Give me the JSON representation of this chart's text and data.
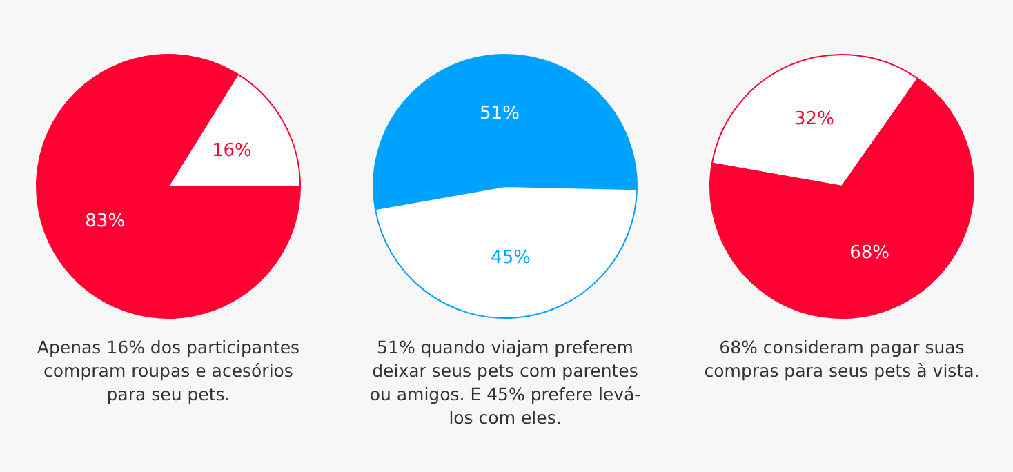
{
  "chart_data": [
    {
      "type": "pie",
      "categories": [
        null,
        null
      ],
      "values": [
        83,
        16
      ],
      "colors": [
        "#ff0033",
        "#ffffff"
      ],
      "value_labels": [
        "83%",
        "16%"
      ],
      "annotations": [
        "Apenas 16% dos participantes compram roupas e acesórios para seu pets."
      ]
    },
    {
      "type": "pie",
      "categories": [
        null,
        null
      ],
      "values": [
        51,
        45
      ],
      "colors": [
        "#00a2ff",
        "#ffffff"
      ],
      "value_labels": [
        "51%",
        "45%"
      ],
      "annotations": [
        "51% quando viajam preferem deixar seus pets com parentes ou amigos. E 45% prefere levá-los com eles."
      ]
    },
    {
      "type": "pie",
      "categories": [
        null,
        null
      ],
      "values": [
        32,
        68
      ],
      "colors": [
        "#ffffff",
        "#ff0033"
      ],
      "value_labels": [
        "32%",
        "68%"
      ],
      "annotations": [
        "68% consideram pagar suas compras para seus pets à vista."
      ]
    }
  ]
}
